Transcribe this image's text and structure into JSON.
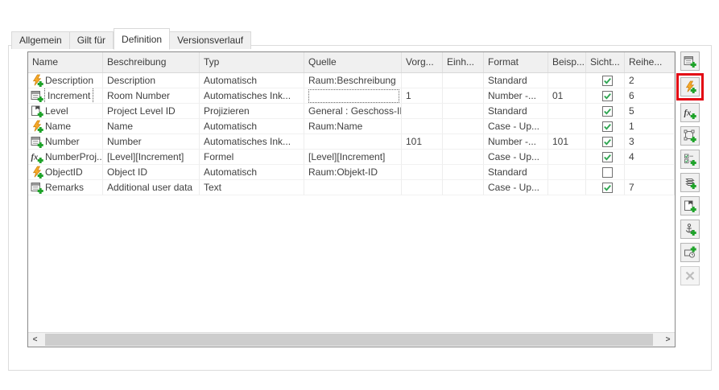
{
  "tabs": [
    {
      "label": "Allgemein",
      "active": false
    },
    {
      "label": "Gilt für",
      "active": false
    },
    {
      "label": "Definition",
      "active": true
    },
    {
      "label": "Versionsverlauf",
      "active": false
    }
  ],
  "table": {
    "columns": [
      {
        "label": "Name"
      },
      {
        "label": "Beschreibung"
      },
      {
        "label": "Typ"
      },
      {
        "label": "Quelle"
      },
      {
        "label": "Vorg..."
      },
      {
        "label": "Einh..."
      },
      {
        "label": "Format"
      },
      {
        "label": "Beisp..."
      },
      {
        "label": "Sicht..."
      },
      {
        "label": "Reihe..."
      }
    ],
    "rows": [
      {
        "icon": "lightning-plus-icon",
        "name": "Description",
        "beschreibung": "Description",
        "typ": "Automatisch",
        "quelle": "Raum:Beschreibung",
        "vorg": "",
        "einh": "",
        "format": "Standard",
        "beisp": "",
        "sicht": true,
        "reihe": "2",
        "name_focus": false,
        "quelle_editbox": false
      },
      {
        "icon": "list-plus-icon",
        "name": "Increment",
        "beschreibung": "Room Number",
        "typ": "Automatisches Ink...",
        "quelle": "",
        "vorg": "1",
        "einh": "",
        "format": "Number -...",
        "beisp": "01",
        "sicht": true,
        "reihe": "6",
        "name_focus": true,
        "quelle_editbox": true
      },
      {
        "icon": "level-plus-icon",
        "name": "Level",
        "beschreibung": "Project Level ID",
        "typ": "Projizieren",
        "quelle": "General : Geschoss-ID",
        "vorg": "",
        "einh": "",
        "format": "Standard",
        "beisp": "",
        "sicht": true,
        "reihe": "5",
        "name_focus": false,
        "quelle_editbox": false
      },
      {
        "icon": "lightning-plus-icon",
        "name": "Name",
        "beschreibung": "Name",
        "typ": "Automatisch",
        "quelle": "Raum:Name",
        "vorg": "",
        "einh": "",
        "format": "Case - Up...",
        "beisp": "",
        "sicht": true,
        "reihe": "1",
        "name_focus": false,
        "quelle_editbox": false
      },
      {
        "icon": "list-plus-icon",
        "name": "Number",
        "beschreibung": "Number",
        "typ": "Automatisches Ink...",
        "quelle": "",
        "vorg": "101",
        "einh": "",
        "format": "Number -...",
        "beisp": "101",
        "sicht": true,
        "reihe": "3",
        "name_focus": false,
        "quelle_editbox": false
      },
      {
        "icon": "formula-plus-icon",
        "name": "NumberProj...",
        "beschreibung": "[Level][Increment]",
        "typ": "Formel",
        "quelle": "[Level][Increment]",
        "vorg": "",
        "einh": "",
        "format": "Case - Up...",
        "beisp": "",
        "sicht": true,
        "reihe": "4",
        "name_focus": false,
        "quelle_editbox": false
      },
      {
        "icon": "lightning-plus-icon",
        "name": "ObjectID",
        "beschreibung": "Object ID",
        "typ": "Automatisch",
        "quelle": "Raum:Objekt-ID",
        "vorg": "",
        "einh": "",
        "format": "Standard",
        "beisp": "",
        "sicht": false,
        "reihe": "",
        "name_focus": false,
        "quelle_editbox": false
      },
      {
        "icon": "list-plus-icon",
        "name": "Remarks",
        "beschreibung": "Additional user data",
        "typ": "Text",
        "quelle": "",
        "vorg": "",
        "einh": "",
        "format": "Case - Up...",
        "beisp": "",
        "sicht": true,
        "reihe": "7",
        "name_focus": false,
        "quelle_editbox": false
      }
    ]
  },
  "toolbar": {
    "buttons": [
      {
        "name": "add-text-property-button",
        "icon": "list-plus-icon",
        "highlighted": false,
        "disabled": false
      },
      {
        "name": "add-automatic-property-button",
        "icon": "lightning-plus-icon",
        "highlighted": true,
        "disabled": false
      },
      {
        "name": "add-formula-property-button",
        "icon": "formula-plus-icon",
        "highlighted": false,
        "disabled": false
      },
      {
        "name": "add-projected-property-button",
        "icon": "projection-plus-icon",
        "highlighted": false,
        "disabled": false
      },
      {
        "name": "add-selection-list-property-button",
        "icon": "checklist-plus-icon",
        "highlighted": false,
        "disabled": false
      },
      {
        "name": "add-material-property-button",
        "icon": "layers-plus-icon",
        "highlighted": false,
        "disabled": false
      },
      {
        "name": "add-level-property-button",
        "icon": "level-plus-icon",
        "highlighted": false,
        "disabled": false
      },
      {
        "name": "add-anchor-property-button",
        "icon": "anchor-plus-icon",
        "highlighted": false,
        "disabled": false
      },
      {
        "name": "add-geometry-property-button",
        "icon": "shape-clock-plus-icon",
        "highlighted": false,
        "disabled": false
      },
      {
        "name": "delete-property-button",
        "icon": "delete-x-icon",
        "highlighted": false,
        "disabled": true
      }
    ]
  },
  "scrollbar": {
    "left_glyph": "<",
    "right_glyph": ">"
  },
  "colors": {
    "highlight_red": "#e30613",
    "check_green": "#2fa652",
    "plus_green": "#1fa32a",
    "lightning_orange": "#f7a928",
    "header_bg": "#f0f0f0"
  }
}
